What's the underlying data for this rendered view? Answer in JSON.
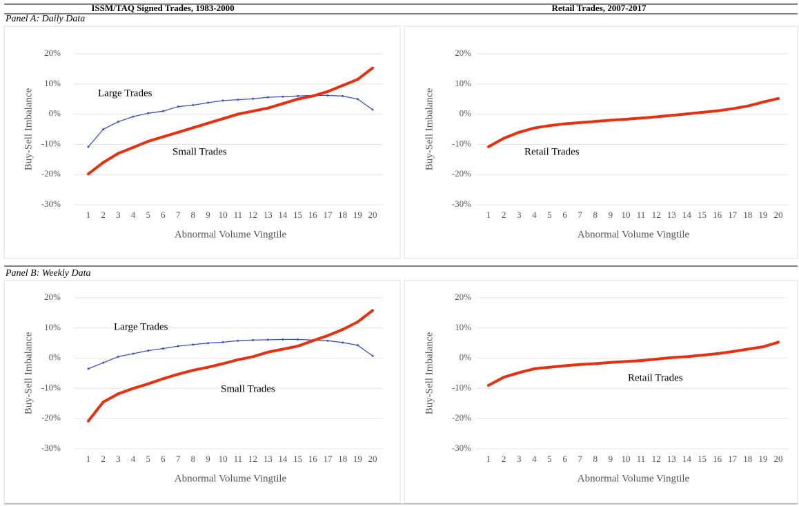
{
  "headers": [
    "ISSM/TAQ Signed Trades, 1983-2000",
    "Retail Trades, 2007-2017"
  ],
  "panels": [
    "Panel A: Daily Data",
    "Panel B: Weekly Data"
  ],
  "chart_data": [
    {
      "type": "line",
      "y_label": "Buy-Sell Imbalance",
      "x_label": "Abnormal Volume Vingtile",
      "categories": [
        "1",
        "2",
        "3",
        "4",
        "5",
        "6",
        "7",
        "8",
        "9",
        "10",
        "11",
        "12",
        "13",
        "14",
        "15",
        "16",
        "17",
        "18",
        "19",
        "20"
      ],
      "ylim": [
        -30,
        20
      ],
      "yticks": [
        {
          "value": -30,
          "label": "-30%"
        },
        {
          "value": -20,
          "label": "-20%"
        },
        {
          "value": -10,
          "label": "-10%"
        },
        {
          "value": 0,
          "label": "0%"
        },
        {
          "value": 10,
          "label": "10%"
        },
        {
          "value": 20,
          "label": "20%"
        }
      ],
      "grid": true,
      "series": [
        {
          "name": "Large Trades",
          "color": "#3a4fc4",
          "values": [
            -10.8,
            -5,
            -2.5,
            -0.8,
            0.3,
            1,
            2.5,
            3,
            3.8,
            4.5,
            4.8,
            5.1,
            5.6,
            5.8,
            6,
            6.2,
            6.2,
            6,
            5,
            1.5
          ]
        },
        {
          "name": "Small Trades",
          "color": "#e8300e",
          "values": [
            -19.8,
            -16,
            -13,
            -11,
            -9,
            -7.5,
            -6,
            -4.5,
            -3,
            -1.5,
            0,
            1,
            2,
            3.5,
            5,
            6,
            7.5,
            9.5,
            11.5,
            15.3
          ]
        }
      ]
    },
    {
      "type": "line",
      "y_label": "Buy-Sell Imbalance",
      "x_label": "Abnormal Volume Vingtile",
      "categories": [
        "1",
        "2",
        "3",
        "4",
        "5",
        "6",
        "7",
        "8",
        "9",
        "10",
        "11",
        "12",
        "13",
        "14",
        "15",
        "16",
        "17",
        "18",
        "19",
        "20"
      ],
      "ylim": [
        -30,
        20
      ],
      "yticks": [
        {
          "value": -30,
          "label": "-30%"
        },
        {
          "value": -20,
          "label": "-20%"
        },
        {
          "value": -10,
          "label": "-10%"
        },
        {
          "value": 0,
          "label": "0%"
        },
        {
          "value": 10,
          "label": "10%"
        },
        {
          "value": 20,
          "label": "20%"
        }
      ],
      "grid": true,
      "series": [
        {
          "name": "Retail Trades",
          "color": "#e8300e",
          "values": [
            -10.8,
            -8,
            -6,
            -4.6,
            -3.8,
            -3.2,
            -2.8,
            -2.4,
            -2,
            -1.7,
            -1.3,
            -0.9,
            -0.4,
            0.1,
            0.6,
            1.1,
            1.8,
            2.7,
            4,
            5.2
          ]
        }
      ]
    },
    {
      "type": "line",
      "y_label": "Buy-Sell Imbalance",
      "x_label": "Abnormal Volume Vingtile",
      "categories": [
        "1",
        "2",
        "3",
        "4",
        "5",
        "6",
        "7",
        "8",
        "9",
        "10",
        "11",
        "12",
        "13",
        "14",
        "15",
        "16",
        "17",
        "18",
        "19",
        "20"
      ],
      "ylim": [
        -30,
        20
      ],
      "yticks": [
        {
          "value": -30,
          "label": "-30%"
        },
        {
          "value": -20,
          "label": "-20%"
        },
        {
          "value": -10,
          "label": "-10%"
        },
        {
          "value": 0,
          "label": "0%"
        },
        {
          "value": 10,
          "label": "10%"
        },
        {
          "value": 20,
          "label": "20%"
        }
      ],
      "grid": true,
      "series": [
        {
          "name": "Large Trades",
          "color": "#3a4fc4",
          "values": [
            -3.5,
            -1.5,
            0.5,
            1.5,
            2.5,
            3.2,
            4,
            4.5,
            5,
            5.3,
            5.8,
            6,
            6.1,
            6.2,
            6.2,
            6,
            5.8,
            5.2,
            4.3,
            0.8
          ]
        },
        {
          "name": "Small Trades",
          "color": "#e8300e",
          "values": [
            -20.8,
            -14.5,
            -11.8,
            -10,
            -8.5,
            -6.8,
            -5.3,
            -4,
            -3,
            -1.8,
            -0.5,
            0.5,
            2,
            3,
            4,
            5.8,
            7.5,
            9.5,
            12,
            15.8
          ]
        }
      ]
    },
    {
      "type": "line",
      "y_label": "Buy-Sell Imbalance",
      "x_label": "Abnormal Volume Vingtile",
      "categories": [
        "1",
        "2",
        "3",
        "4",
        "5",
        "6",
        "7",
        "8",
        "9",
        "10",
        "11",
        "12",
        "13",
        "14",
        "15",
        "16",
        "17",
        "18",
        "19",
        "20"
      ],
      "ylim": [
        -30,
        20
      ],
      "yticks": [
        {
          "value": -30,
          "label": "-30%"
        },
        {
          "value": -20,
          "label": "-20%"
        },
        {
          "value": -10,
          "label": "-10%"
        },
        {
          "value": 0,
          "label": "0%"
        },
        {
          "value": 10,
          "label": "10%"
        },
        {
          "value": 20,
          "label": "20%"
        }
      ],
      "grid": true,
      "series": [
        {
          "name": "Retail Trades",
          "color": "#e8300e",
          "values": [
            -9,
            -6.3,
            -4.8,
            -3.5,
            -3,
            -2.5,
            -2.1,
            -1.8,
            -1.4,
            -1.1,
            -0.8,
            -0.3,
            0.2,
            0.5,
            1,
            1.5,
            2.2,
            3,
            3.8,
            5.3
          ]
        }
      ]
    }
  ]
}
